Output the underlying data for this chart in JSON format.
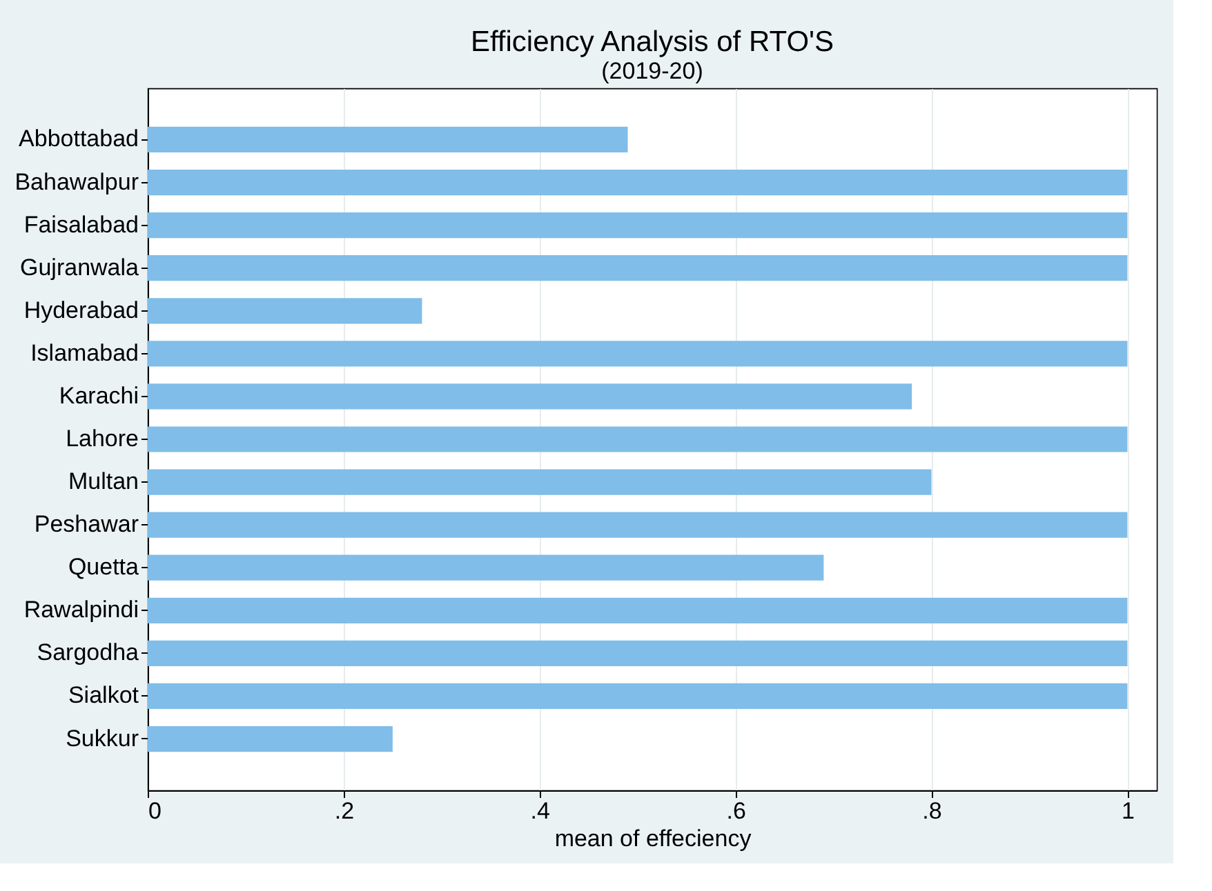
{
  "chart_data": {
    "type": "bar",
    "orientation": "horizontal",
    "title": "Efficiency Analysis of RTO'S",
    "subtitle": "(2019-20)",
    "xlabel": "mean of effeciency",
    "categories": [
      "Abbottabad",
      "Bahawalpur",
      "Faisalabad",
      "Gujranwala",
      "Hyderabad",
      "Islamabad",
      "Karachi",
      "Lahore",
      "Multan",
      "Peshawar",
      "Quetta",
      "Rawalpindi",
      "Sargodha",
      "Sialkot",
      "Sukkur"
    ],
    "values": [
      0.49,
      1,
      1,
      1,
      0.28,
      1,
      0.78,
      1,
      0.8,
      1,
      0.69,
      1,
      1,
      1,
      0.25
    ],
    "color": "#80bde8",
    "xlim": [
      0,
      1.03
    ],
    "xticks": [
      0,
      {
        "value": 0.2,
        "label": ".2"
      },
      {
        "value": 0.4,
        "label": ".4"
      },
      {
        "value": 0.6,
        "label": ".6"
      },
      {
        "value": 0.8,
        "label": ".8"
      },
      1
    ],
    "grid": "x"
  }
}
